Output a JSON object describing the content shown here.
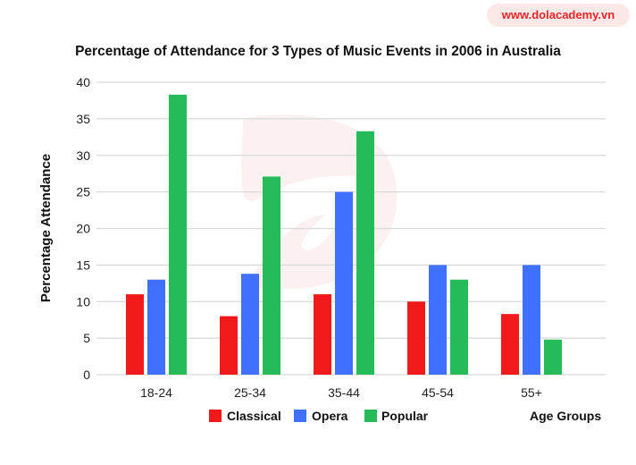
{
  "logo": {
    "text": "www.dolacademy.vn"
  },
  "colors": {
    "Classical": "#f2191b",
    "Opera": "#4070ff",
    "Popular": "#24bb58",
    "grid": "#d9d9d9",
    "logo_bg": "#fde8e8",
    "logo_text": "#e8262a"
  },
  "chart_data": {
    "type": "bar",
    "title": "Percentage of Attendance for 3 Types of Music Events in 2006 in Australia",
    "xlabel": "Age Groups",
    "ylabel": "Percentage Attendance",
    "ylim": [
      0,
      40
    ],
    "yticks": [
      0,
      5,
      10,
      15,
      20,
      25,
      30,
      35,
      40
    ],
    "grid": true,
    "legend_position": "bottom",
    "categories": [
      "18-24",
      "25-34",
      "35-44",
      "45-54",
      "55+"
    ],
    "series": [
      {
        "name": "Classical",
        "values": [
          11,
          8,
          11,
          10,
          8.3
        ]
      },
      {
        "name": "Opera",
        "values": [
          13,
          13.8,
          25,
          15,
          15
        ]
      },
      {
        "name": "Popular",
        "values": [
          38.3,
          27.1,
          33.3,
          13,
          4.8
        ]
      }
    ]
  }
}
